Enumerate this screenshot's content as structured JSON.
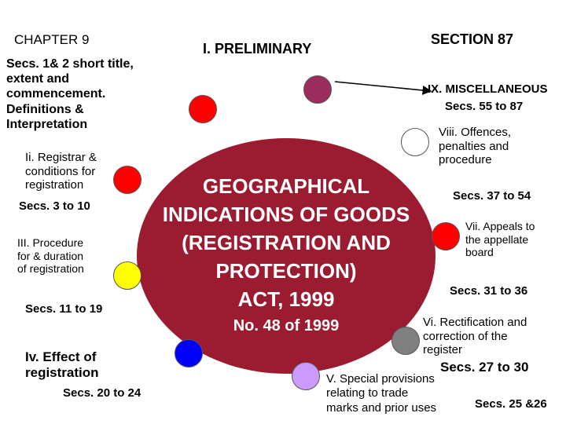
{
  "header": {
    "chapter": "CHAPTER 9",
    "section": "SECTION 87",
    "preliminary": "I. PRELIMINARY"
  },
  "center": {
    "line1": "GEOGRAPHICAL",
    "line2": "INDICATIONS OF GOODS",
    "line3": "(REGISTRATION AND",
    "line4": "PROTECTION)",
    "line5": "ACT, 1999",
    "line6": "No. 48 of 1999"
  },
  "items": {
    "secs_1_2": "Secs. 1& 2 short title,\nextent and\ncommencement.\nDefinitions &\nInterpretation",
    "part_ii": "Ii. Registrar &\nconditions for\nregistration",
    "part_ii_secs": "Secs. 3 to 10",
    "part_iii": "III. Procedure\nfor & duration\nof registration",
    "part_iii_secs": "Secs. 11 to 19",
    "part_iv": "Iv. Effect of\nregistration",
    "part_iv_secs": "Secs. 20  to 24",
    "part_ix": "IX. MISCELLANEOUS",
    "part_ix_secs": "Secs. 55 to 87",
    "part_viii": "Viii. Offences,\npenalties and\nprocedure",
    "part_viii_secs": "Secs. 37 to 54",
    "part_vii": "Vii. Appeals to\nthe appellate\nboard",
    "part_vii_secs": "Secs. 31 to 36",
    "part_vi": "Vi. Rectification and\ncorrection of the\nregister",
    "part_vi_secs": "Secs. 27 to 30",
    "part_v": "V. Special provisions\nrelating to trade\nmarks and prior uses",
    "part_v_secs": "Secs. 25 &26"
  },
  "colors": {
    "center": "#9b1b30",
    "dot_ix": "#9b2c5e",
    "dot_i": "#ff0000",
    "dot_ii": "#ff0000",
    "dot_iii": "#ffff00",
    "dot_iv": "#0000ff",
    "dot_v": "#cc99ff",
    "dot_vi": "#808080",
    "dot_vii": "#ff0000",
    "dot_viii": "#ffffff"
  }
}
